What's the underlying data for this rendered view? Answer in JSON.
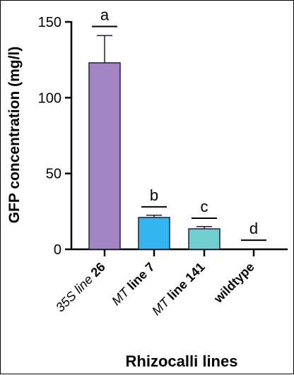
{
  "chart_data": {
    "type": "bar",
    "ylabel": "GFP concentration (mg/l)",
    "xlabel": "Rhizocalli lines",
    "ylim": [
      0,
      150
    ],
    "yticks": [
      0,
      50,
      100,
      150
    ],
    "categories": [
      {
        "parts": [
          {
            "text": "35S ",
            "style": "italic"
          },
          {
            "text": "line",
            "style": "italic"
          },
          {
            "text": " 26",
            "style": "bold"
          }
        ]
      },
      {
        "parts": [
          {
            "text": "MT",
            "style": "italic"
          },
          {
            "text": " line 7",
            "style": "bold"
          }
        ]
      },
      {
        "parts": [
          {
            "text": "MT",
            "style": "italic"
          },
          {
            "text": " line 141",
            "style": "bold"
          }
        ]
      },
      {
        "parts": [
          {
            "text": "wildtype",
            "style": "bold"
          }
        ]
      }
    ],
    "values": [
      123,
      21,
      13.5,
      0
    ],
    "errors": [
      18,
      1.5,
      1.5,
      0
    ],
    "significance": [
      "a",
      "b",
      "c",
      "d"
    ],
    "sig_line_values": [
      147,
      28,
      20.5,
      6
    ],
    "colors": [
      "#a385c4",
      "#35b6f0",
      "#6fcfcf",
      "#ffffff"
    ],
    "grid": false,
    "legend": "none"
  }
}
